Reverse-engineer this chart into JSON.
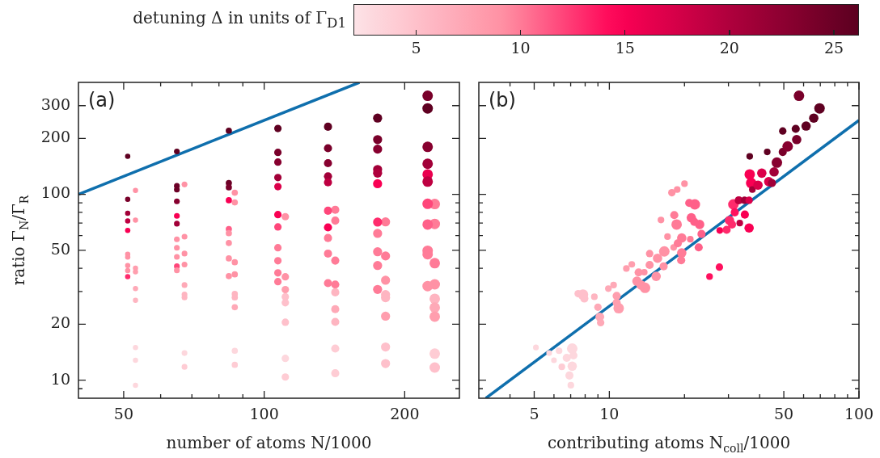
{
  "chart_data": [
    {
      "type": "bubble",
      "xlabel": "number of atoms N/1000",
      "ylabel": "ratio Γ$_{N}$/Γ$_{R}$",
      "clabel": "detuning Δ in units of Γ$_{D1}$",
      "clim": [
        2,
        26.2
      ],
      "cticks": [
        5,
        10,
        15,
        20,
        25
      ],
      "annotations": [
        "(a)"
      ],
      "log": "xy",
      "legend": false,
      "xlim": [
        40,
        262
      ],
      "xticks": [
        50,
        {
          "value": 60,
          "label": null
        },
        {
          "value": 70,
          "label": null
        },
        {
          "value": 80,
          "label": null
        },
        {
          "value": 90,
          "label": null
        },
        100,
        200
      ],
      "ylim": [
        8,
        400
      ],
      "yticks": [
        {
          "value": 9,
          "label": null
        },
        10,
        20,
        {
          "value": 30,
          "label": null
        },
        {
          "value": 40,
          "label": null
        },
        50,
        {
          "value": 60,
          "label": null
        },
        {
          "value": 70,
          "label": null
        },
        {
          "value": 80,
          "label": null
        },
        {
          "value": 90,
          "label": null
        },
        100,
        200,
        300
      ],
      "series": [
        {
          "x": [
            51,
            51,
            51,
            51,
            51,
            51,
            51,
            51,
            51,
            51
          ],
          "values": [
            160,
            94,
            79,
            72,
            64,
            47.6,
            46,
            41.4,
            38.9,
            36.1
          ],
          "colors": [
            "#5f0021",
            "#79002a",
            "#a20038",
            "#be0041",
            "#f90053",
            "#ff92a5",
            "#ff92a5",
            "#ff92a5",
            "#ff92a5",
            "#ff2b6c"
          ],
          "sizes": [
            0.25,
            0.25,
            0.25,
            0.25,
            0.25,
            0.25,
            0.25,
            0.25,
            0.25,
            0.25
          ]
        },
        {
          "x": [
            53,
            53,
            53,
            53,
            53,
            53,
            53,
            53,
            53
          ],
          "values": [
            105,
            72.6,
            40.1,
            38.3,
            31.1,
            26.9,
            15.0,
            12.8,
            9.4
          ],
          "colors": [
            "#ff92a5",
            "#ff92a5",
            "#ff9eae",
            "#ff9eae",
            "#fea9b7",
            "#feb5c1",
            "#fdd7dd",
            "#fdd7dd",
            "#fdd7dd"
          ],
          "sizes": [
            0.25,
            0.25,
            0.25,
            0.25,
            0.25,
            0.25,
            0.25,
            0.25,
            0.25
          ]
        },
        {
          "x": [
            65,
            65,
            65,
            65,
            65,
            65,
            65,
            65,
            65,
            65,
            65
          ],
          "values": [
            170,
            111,
            106,
            91.7,
            76.6,
            69.5,
            57.3,
            51.6,
            46.1,
            41.0,
            39.0
          ],
          "colors": [
            "#5f0021",
            "#6c0026",
            "#6c0026",
            "#87002f",
            "#f90053",
            "#a20038",
            "#ff92a5",
            "#ff92a5",
            "#ff92a5",
            "#ff467a",
            "#ff92a5"
          ],
          "sizes": [
            0.3,
            0.3,
            0.3,
            0.3,
            0.3,
            0.3,
            0.3,
            0.3,
            0.3,
            0.3,
            0.3
          ]
        },
        {
          "x": [
            67.5,
            67.5,
            67.5,
            67.5,
            67.5,
            67.5,
            67.5,
            67.5,
            67.5
          ],
          "values": [
            113,
            59.2,
            48.0,
            41.9,
            32.5,
            28.9,
            27.9,
            14.0,
            11.8
          ],
          "colors": [
            "#ff92a5",
            "#ff92a5",
            "#ff92a5",
            "#ff92a5",
            "#fea9b7",
            "#feb5c1",
            "#feb5c1",
            "#fdd7dd",
            "#feccd4"
          ],
          "sizes": [
            0.3,
            0.3,
            0.3,
            0.3,
            0.3,
            0.3,
            0.3,
            0.3,
            0.3
          ]
        },
        {
          "x": [
            84,
            84,
            84,
            84,
            84,
            84,
            84,
            84,
            84
          ],
          "values": [
            220,
            115,
            109,
            92.9,
            65.0,
            61.8,
            54.7,
            45.2,
            36.3
          ],
          "colors": [
            "#5f0021",
            "#6c0026",
            "#79002a",
            "#f90053",
            "#ff6089",
            "#ff92a5",
            "#ff92a5",
            "#ff92a5",
            "#ff92a5"
          ],
          "sizes": [
            0.35,
            0.35,
            0.35,
            0.35,
            0.35,
            0.35,
            0.35,
            0.35,
            0.35
          ]
        },
        {
          "x": [
            86.5,
            86.5,
            86.5,
            86.5,
            86.5,
            86.5,
            86.5,
            86.5,
            86.5
          ],
          "values": [
            102,
            90.5,
            43.1,
            37.1,
            29.1,
            27.9,
            24.7,
            14.4,
            12.1
          ],
          "colors": [
            "#ff92a5",
            "#ff92a5",
            "#ff92a5",
            "#ff92a5",
            "#feb5c1",
            "#feb5c1",
            "#fea9b7",
            "#fdd7dd",
            "#feccd4"
          ],
          "sizes": [
            0.35,
            0.35,
            0.35,
            0.35,
            0.35,
            0.35,
            0.35,
            0.35,
            0.35
          ]
        },
        {
          "x": [
            107,
            107,
            107,
            107,
            107,
            107,
            107,
            107,
            107,
            107,
            107
          ],
          "values": [
            226,
            168,
            149,
            123,
            110,
            77.8,
            66.8,
            51.6,
            43.9,
            37.8,
            33.9
          ],
          "colors": [
            "#5f0021",
            "#79002a",
            "#87002f",
            "#a20038",
            "#db004a",
            "#f90053",
            "#ff467a",
            "#ff7b97",
            "#ff7b97",
            "#ff7b97",
            "#ff7b97"
          ],
          "sizes": [
            0.5,
            0.5,
            0.5,
            0.5,
            0.5,
            0.5,
            0.5,
            0.5,
            0.5,
            0.5,
            0.5
          ]
        },
        {
          "x": [
            111,
            111,
            111,
            111,
            111,
            111,
            111,
            111
          ],
          "values": [
            75.8,
            36.0,
            30.7,
            28.1,
            26.1,
            20.5,
            13.1,
            10.4
          ],
          "colors": [
            "#ff92a5",
            "#ff92a5",
            "#ff9eae",
            "#fec0cb",
            "#fec0cb",
            "#fec0cb",
            "#fdd7dd",
            "#feccd4"
          ],
          "sizes": [
            0.5,
            0.5,
            0.5,
            0.5,
            0.5,
            0.5,
            0.5,
            0.5
          ]
        },
        {
          "x": [
            137,
            137,
            137,
            137,
            137,
            137,
            137,
            137,
            137,
            137
          ],
          "values": [
            231,
            177,
            147,
            125,
            116,
            81.6,
            66.4,
            58.2,
            48.0,
            33.3
          ],
          "colors": [
            "#5f0021",
            "#79002a",
            "#87002f",
            "#a20038",
            "#be0041",
            "#ff467a",
            "#f90053",
            "#ff7b97",
            "#ff7b97",
            "#ff7b97"
          ],
          "sizes": [
            0.6,
            0.6,
            0.6,
            0.6,
            0.6,
            0.6,
            0.6,
            0.6,
            0.6,
            0.6
          ]
        },
        {
          "x": [
            142,
            142,
            142,
            142,
            142,
            142,
            142,
            142,
            142
          ],
          "values": [
            82.6,
            72.2,
            44.0,
            32.7,
            29.7,
            24.1,
            20.6,
            14.8,
            10.9
          ],
          "colors": [
            "#ff7b97",
            "#ff7b97",
            "#ff7b97",
            "#ff7b97",
            "#feb5c1",
            "#fea9b7",
            "#feb5c1",
            "#feccd4",
            "#feccd4"
          ],
          "sizes": [
            0.6,
            0.6,
            0.6,
            0.6,
            0.6,
            0.6,
            0.6,
            0.6,
            0.6
          ]
        },
        {
          "x": [
            175,
            175,
            175,
            175,
            175,
            175,
            175,
            175,
            175,
            175,
            175
          ],
          "values": [
            257,
            197,
            175,
            136,
            130,
            114,
            70.9,
            61.6,
            49.1,
            41.4,
            30.8
          ],
          "colors": [
            "#5f0021",
            "#79002a",
            "#87002f",
            "#a20038",
            "#af003d",
            "#f90053",
            "#ff2b6c",
            "#ff7b97",
            "#ff7b97",
            "#ff7b97",
            "#ff7b97"
          ],
          "sizes": [
            0.75,
            0.75,
            0.75,
            0.75,
            0.75,
            0.75,
            0.75,
            0.75,
            0.75,
            0.75,
            0.75
          ]
        },
        {
          "x": [
            182,
            182,
            182,
            182,
            182,
            182,
            182,
            182
          ],
          "values": [
            71.1,
            46.6,
            34.5,
            28.9,
            27.8,
            22.1,
            15.1,
            12.3
          ],
          "colors": [
            "#ff7b97",
            "#ff7b97",
            "#ff92a5",
            "#feb5c1",
            "#feb5c1",
            "#ff9eae",
            "#fec0cb",
            "#fec0cb"
          ],
          "sizes": [
            0.75,
            0.75,
            0.75,
            0.75,
            0.75,
            0.75,
            0.75,
            0.75
          ]
        },
        {
          "x": [
            224,
            224,
            224,
            224,
            224,
            224,
            224,
            224,
            224,
            224,
            224
          ],
          "values": [
            339,
            290,
            180,
            146,
            128,
            117,
            88.9,
            68.8,
            49.7,
            47.6,
            32.1
          ],
          "colors": [
            "#79002a",
            "#5f0021",
            "#87002f",
            "#a20038",
            "#ea004f",
            "#be0041",
            "#ff467a",
            "#ff6089",
            "#ff7b97",
            "#ff7b97",
            "#ff92a5"
          ],
          "sizes": [
            1,
            1,
            1,
            1,
            1,
            1,
            1,
            1,
            1,
            1,
            1
          ]
        },
        {
          "x": [
            232,
            232,
            232,
            232,
            232,
            232,
            232,
            232,
            232
          ],
          "values": [
            88.7,
            69.3,
            42.6,
            32.8,
            27.4,
            24.6,
            22.0,
            13.9,
            11.7
          ],
          "colors": [
            "#ff7b97",
            "#ff7b97",
            "#ff7b97",
            "#ff92a5",
            "#feb5c1",
            "#fea9b7",
            "#ff9eae",
            "#feccd4",
            "#fec0cb"
          ],
          "sizes": [
            1,
            1,
            1,
            1,
            1,
            1,
            1,
            1,
            1
          ]
        },
        {
          "type": "line",
          "color": "#0f6fad",
          "x": [
            40,
            160
          ],
          "values": [
            100,
            400
          ]
        }
      ]
    },
    {
      "type": "bubble",
      "xlabel": "contributing atoms N$_{coll}$/1000",
      "annotations": [
        "(b)"
      ],
      "log": "xy",
      "legend": false,
      "tick_labels": "x",
      "xlim": [
        3,
        100
      ],
      "xticks": [
        {
          "value": 4,
          "label": null
        },
        5,
        {
          "value": 6,
          "label": null
        },
        {
          "value": 7,
          "label": null
        },
        {
          "value": 8,
          "label": null
        },
        {
          "value": 9,
          "label": null
        },
        10,
        {
          "value": 20,
          "label": null
        },
        {
          "value": 30,
          "label": null
        },
        {
          "value": 40,
          "label": null
        },
        50,
        {
          "value": 60,
          "label": null
        },
        {
          "value": 70,
          "label": null
        },
        {
          "value": 80,
          "label": null
        },
        {
          "value": 90,
          "label": null
        },
        100
      ],
      "ylim": [
        8,
        400
      ],
      "yticks": [
        {
          "value": 9,
          "label": null
        },
        10,
        20,
        {
          "value": 30,
          "label": null
        },
        {
          "value": 40,
          "label": null
        },
        50,
        {
          "value": 60,
          "label": null
        },
        {
          "value": 70,
          "label": null
        },
        {
          "value": 80,
          "label": null
        },
        {
          "value": 90,
          "label": null
        },
        100,
        200,
        300
      ],
      "series": [
        {
          "x": [
            5.08,
            5.74,
            6.0,
            6.29,
            6.45,
            6.75,
            7.1,
            7.1,
            6.92,
            7.01,
            7.18,
            7.5,
            7.84,
            7.94,
            8.71,
            9.0,
            9.16,
            9.23,
            9.91,
            10.4,
            10.7,
            10.9,
            10.7,
            11.7,
            12.3,
            12.9,
            13.1,
            13.8,
            13.9,
            13.4,
            14.5,
            14.5,
            15.4,
            15.6,
            16.5,
            16.6,
            16.1,
            17.1,
            17.8,
            18.7,
            20.0,
            18.1,
            18.2,
            18.6,
            18.8,
            19.5,
            19.5,
            19.4,
            21.1,
            20.9,
            22.0,
            21.3,
            21.9,
            23.0,
            23.4,
            22.8,
            25.2,
            27.6,
            27.7,
            29.5,
            30.3,
            31.0,
            31.4,
            31.8,
            33.3,
            33.0,
            34.8,
            36.3,
            34.9,
            36.3,
            36.5,
            36.5,
            37.0,
            37.4,
            39.4,
            40.8,
            42.9,
            43.5,
            44.8,
            45.7,
            46.9,
            49.5,
            49.5,
            51.8,
            55.8,
            56.3,
            57.5,
            61.4,
            65.9,
            69.5
          ],
          "values": [
            15.0,
            14.0,
            12.8,
            14.4,
            11.8,
            13.2,
            14.8,
            11.9,
            10.6,
            9.4,
            13.6,
            29.2,
            28.9,
            27.5,
            28.1,
            24.7,
            21.9,
            20.4,
            31.1,
            32.5,
            28.4,
            24.4,
            26.1,
            39.9,
            42.0,
            34.1,
            38.0,
            38.1,
            31.4,
            32.5,
            48.0,
            41.7,
            36.2,
            45.3,
            41.0,
            49.3,
            72.8,
            59.2,
            102,
            106,
            114,
            51.8,
            77.3,
            68.8,
            54.5,
            58.2,
            48.4,
            44.2,
            57.3,
            89.9,
            88.3,
            74.8,
            71.1,
            68.8,
            61.2,
            51.8,
            36.1,
            40.6,
            63.9,
            64.4,
            72.3,
            68.8,
            88.3,
            80.0,
            70.0,
            92.9,
            92.9,
            92.9,
            77.8,
            65.9,
            160,
            128,
            115,
            106,
            112,
            130,
            169,
            117,
            115,
            132,
            148,
            169,
            219,
            181,
            225,
            197,
            339,
            233,
            257,
            290
          ],
          "colors": [
            "#fdd7dd",
            "#fdd7dd",
            "#fdd7dd",
            "#fdd7dd",
            "#feccd4",
            "#fdd7dd",
            "#fdd7dd",
            "#fdd7dd",
            "#fdd7dd",
            "#fdd7dd",
            "#fdd7dd",
            "#fec0cb",
            "#fec0cb",
            "#fec0cb",
            "#feb5c1",
            "#fea9b7",
            "#fea9b7",
            "#fea9b7",
            "#fea9b7",
            "#fea9b7",
            "#ff9eae",
            "#ff9eae",
            "#ff9eae",
            "#ff9eae",
            "#ff9eae",
            "#ff92a5",
            "#ff92a5",
            "#ff92a5",
            "#ff92a5",
            "#ff92a5",
            "#ff92a5",
            "#ff92a5",
            "#ff92a5",
            "#ff92a5",
            "#ff92a5",
            "#ff92a5",
            "#ff92a5",
            "#ff92a5",
            "#ff92a5",
            "#ff92a5",
            "#ff92a5",
            "#ff92a5",
            "#ff7b97",
            "#ff7b97",
            "#ff7b97",
            "#ff7b97",
            "#ff7b97",
            "#ff7b97",
            "#ff7b97",
            "#ff6089",
            "#ff6089",
            "#ff6089",
            "#ff6089",
            "#ff6089",
            "#ff6089",
            "#ff6089",
            "#ff105e",
            "#ff105e",
            "#f90053",
            "#ff2b6c",
            "#ff2b6c",
            "#ff2b6c",
            "#ff2b6c",
            "#ff105e",
            "#be0041",
            "#be0041",
            "#a20038",
            "#db004a",
            "#f90053",
            "#f90053",
            "#5f0021",
            "#f90053",
            "#f90053",
            "#a20038",
            "#db004a",
            "#db004a",
            "#5f0021",
            "#db004a",
            "#a20038",
            "#a20038",
            "#87002f",
            "#79002a",
            "#5f0021",
            "#87002f",
            "#5f0021",
            "#79002a",
            "#79002a",
            "#5f0021",
            "#5f0021",
            "#5f0021"
          ],
          "sizes": [
            0.3,
            0.3,
            0.3,
            0.4,
            0.4,
            0.6,
            1.0,
            0.8,
            0.6,
            0.4,
            0.6,
            0.5,
            1.0,
            0.6,
            0.4,
            0.5,
            0.7,
            0.5,
            0.4,
            0.4,
            0.6,
            1.0,
            0.6,
            0.4,
            0.4,
            0.8,
            0.6,
            0.4,
            1.0,
            0.8,
            0.5,
            0.6,
            0.8,
            0.8,
            0.6,
            1.0,
            0.4,
            0.4,
            0.5,
            0.4,
            0.4,
            0.4,
            0.6,
            1.0,
            0.6,
            0.8,
            0.8,
            0.6,
            0.4,
            0.6,
            1.0,
            0.8,
            0.6,
            0.8,
            0.6,
            0.6,
            0.4,
            0.5,
            0.4,
            0.6,
            0.8,
            0.6,
            1.0,
            0.6,
            0.4,
            0.6,
            0.5,
            0.5,
            0.6,
            0.8,
            0.4,
            1.0,
            1.0,
            0.4,
            0.8,
            0.8,
            0.4,
            0.8,
            0.6,
            0.8,
            1.0,
            0.6,
            0.5,
            1.0,
            0.6,
            0.8,
            1.0,
            0.8,
            0.8,
            1.0
          ]
        },
        {
          "type": "line",
          "color": "#0f6fad",
          "x": [
            3.2,
            100
          ],
          "values": [
            8,
            250
          ]
        }
      ]
    }
  ]
}
